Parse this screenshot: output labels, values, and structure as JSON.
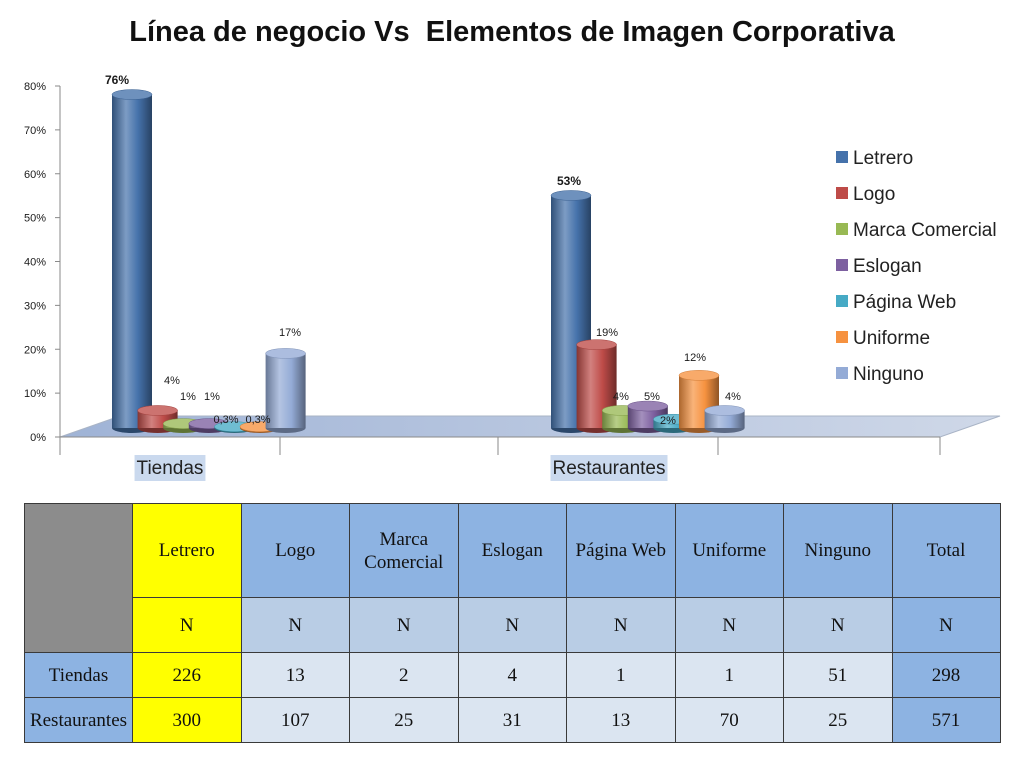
{
  "chart_data": {
    "type": "bar",
    "title": "Línea de negocio Vs  Elementos de Imagen Corporativa",
    "categories": [
      "Tiendas",
      "Restaurantes"
    ],
    "series": [
      {
        "name": "Letrero",
        "values": [
          76,
          53
        ],
        "labels": [
          "76%",
          "53%"
        ],
        "color": "#4572ab"
      },
      {
        "name": "Logo",
        "values": [
          4,
          19
        ],
        "labels": [
          "4%",
          "19%"
        ],
        "color": "#be4b48"
      },
      {
        "name": "Marca Comercial",
        "values": [
          1,
          4
        ],
        "labels": [
          "1%",
          "4%"
        ],
        "color": "#98b954"
      },
      {
        "name": "Eslogan",
        "values": [
          1,
          5
        ],
        "labels": [
          "1%",
          "5%"
        ],
        "color": "#7d60a0"
      },
      {
        "name": "Página Web",
        "values": [
          0.3,
          2
        ],
        "labels": [
          "0,3%",
          "2%"
        ],
        "color": "#46aac5"
      },
      {
        "name": "Uniforme",
        "values": [
          0.3,
          12
        ],
        "labels": [
          "0,3%",
          "12%"
        ],
        "color": "#f69240"
      },
      {
        "name": "Ninguno",
        "values": [
          17,
          4
        ],
        "labels": [
          "17%",
          "4%"
        ],
        "color": "#94abd6"
      }
    ],
    "yticks": [
      "0%",
      "10%",
      "20%",
      "30%",
      "40%",
      "50%",
      "60%",
      "70%",
      "80%"
    ],
    "ylim": [
      0,
      80
    ],
    "legend": "right",
    "grid": false
  },
  "table": {
    "headers": [
      "Letrero",
      "Logo",
      "Marca Comercial",
      "Eslogan",
      "Página Web",
      "Uniforme",
      "Ninguno",
      "Total"
    ],
    "subheaders": [
      "N",
      "N",
      "N",
      "N",
      "N",
      "N",
      "N",
      "N"
    ],
    "rows": [
      {
        "label": "Tiendas",
        "values": [
          226,
          13,
          2,
          4,
          1,
          1,
          51,
          298
        ]
      },
      {
        "label": "Restaurantes",
        "values": [
          300,
          107,
          25,
          31,
          13,
          70,
          25,
          571
        ]
      }
    ],
    "colors": {
      "header": "#8db3e2",
      "highlight": "#ffff00",
      "corner": "#8c8c8c",
      "subheader": "#b9cde5",
      "cell": "#dbe5f1"
    }
  }
}
